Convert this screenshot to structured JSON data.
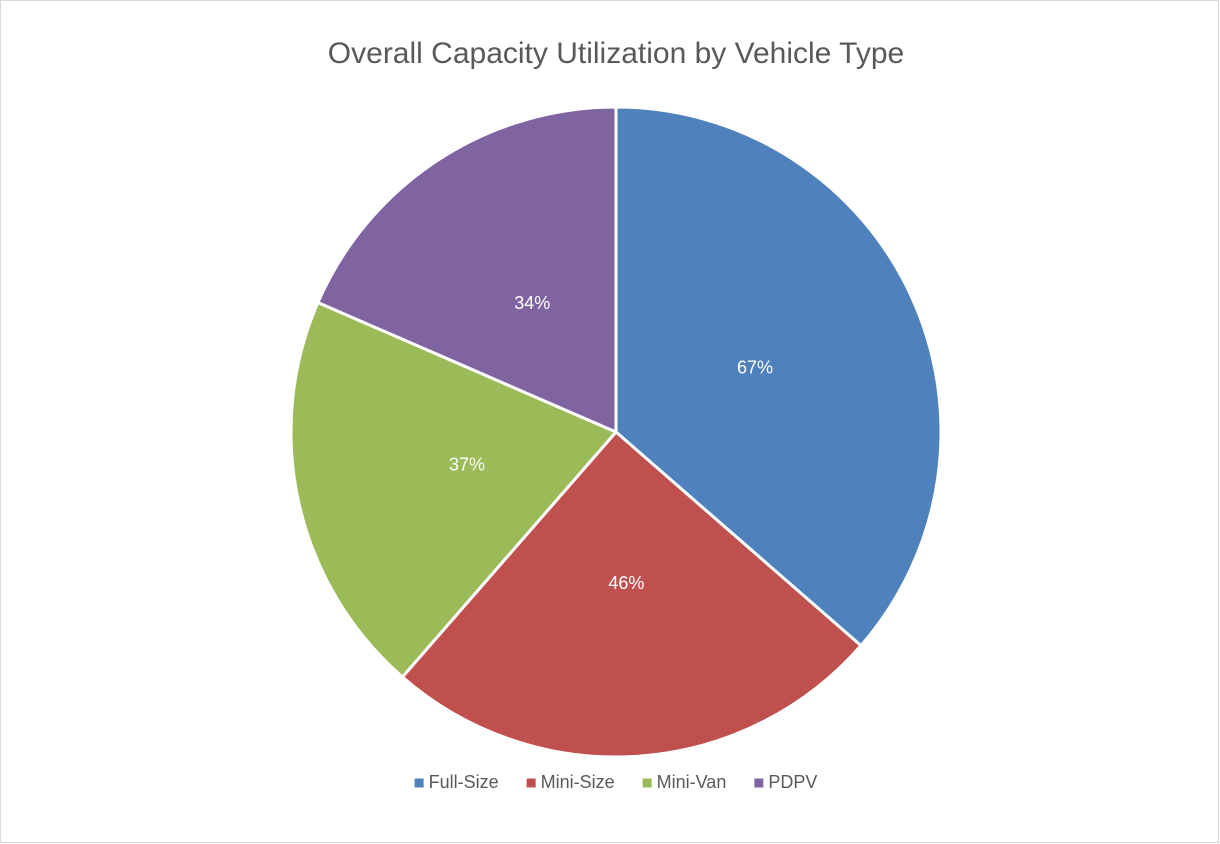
{
  "chart_data": {
    "type": "pie",
    "title": "Overall Capacity Utilization by Vehicle Type",
    "categories": [
      "Full-Size",
      "Mini-Size",
      "Mini-Van",
      "PDPV"
    ],
    "values": [
      67,
      46,
      37,
      34
    ],
    "value_labels": [
      "67%",
      "46%",
      "37%",
      "34%"
    ],
    "colors": [
      "#4f81bd",
      "#c0504d",
      "#9bbb59",
      "#8064a2"
    ],
    "legend": "bottom"
  }
}
